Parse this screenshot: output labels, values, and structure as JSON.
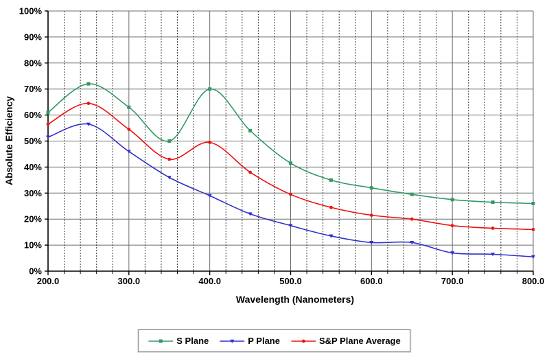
{
  "chart_data": {
    "type": "line",
    "title": "",
    "xlabel": "Wavelength (Nanometers)",
    "ylabel": "Absolute Efficiency",
    "xlim": [
      200,
      800
    ],
    "ylim": [
      0,
      100
    ],
    "x_ticks": {
      "values": [
        200,
        300,
        400,
        500,
        600,
        700,
        800
      ],
      "labels": [
        "200.0",
        "300.0",
        "400.0",
        "500.0",
        "600.0",
        "700.0",
        "800.0"
      ]
    },
    "x_minor_tick_step": 20,
    "y_ticks": {
      "values": [
        0,
        10,
        20,
        30,
        40,
        50,
        60,
        70,
        80,
        90,
        100
      ],
      "labels": [
        "0%",
        "10%",
        "20%",
        "30%",
        "40%",
        "50%",
        "60%",
        "70%",
        "80%",
        "90%",
        "100%"
      ]
    },
    "grid": {
      "horizontal": "solid",
      "vertical_minor": "dotted",
      "vertical_major": "solid",
      "grid_color": "#6E6E6E",
      "minor_grid_color": "#3A3A3A",
      "axis_color": "#000000"
    },
    "legend_position": "bottom-center",
    "x": [
      200,
      250,
      300,
      350,
      400,
      450,
      500,
      550,
      600,
      650,
      700,
      750,
      800
    ],
    "series": [
      {
        "name": "S Plane",
        "color": "#339966",
        "marker": "square",
        "smooth": true,
        "values": [
          61,
          72,
          63,
          50,
          70,
          54,
          41.5,
          35,
          32,
          29.5,
          27.5,
          26.5,
          26
        ]
      },
      {
        "name": "P Plane",
        "color": "#3030CC",
        "marker": "triangle-down",
        "smooth": true,
        "values": [
          51.5,
          56.5,
          46,
          36,
          29,
          22,
          17.5,
          13.5,
          11,
          11,
          7,
          6.5,
          5.5
        ]
      },
      {
        "name": "S&P Plane Average",
        "color": "#EE1111",
        "marker": "circle",
        "smooth": true,
        "values": [
          56.5,
          64.5,
          54.5,
          43,
          49.5,
          38,
          29.5,
          24.5,
          21.5,
          20,
          17.5,
          16.5,
          16
        ]
      }
    ]
  }
}
